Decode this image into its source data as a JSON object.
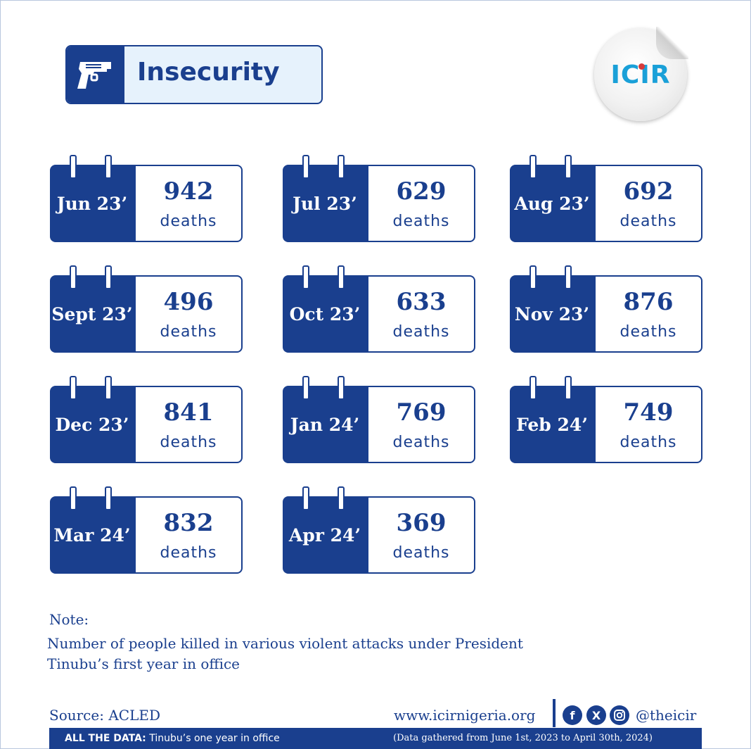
{
  "header": {
    "title": "Insecurity",
    "icon": "gun-icon"
  },
  "logo": {
    "text": "ICIR"
  },
  "cards": [
    {
      "month": "Jun 23’",
      "value": "942",
      "unit": "deaths"
    },
    {
      "month": "Jul 23’",
      "value": "629",
      "unit": "deaths"
    },
    {
      "month": "Aug 23’",
      "value": "692",
      "unit": "deaths"
    },
    {
      "month": "Sept 23’",
      "value": "496",
      "unit": "deaths"
    },
    {
      "month": "Oct 23’",
      "value": "633",
      "unit": "deaths"
    },
    {
      "month": "Nov 23’",
      "value": "876",
      "unit": "deaths"
    },
    {
      "month": "Dec 23’",
      "value": "841",
      "unit": "deaths"
    },
    {
      "month": "Jan 24’",
      "value": "769",
      "unit": "deaths"
    },
    {
      "month": "Feb 24’",
      "value": "749",
      "unit": "deaths"
    },
    {
      "month": "Mar 24’",
      "value": "832",
      "unit": "deaths"
    },
    {
      "month": "Apr 24’",
      "value": "369",
      "unit": "deaths"
    }
  ],
  "note": {
    "heading": "Note:",
    "line1": "Number of people killed in various violent attacks under President",
    "line2": "Tinubu’s first year in office"
  },
  "footer": {
    "source": "Source: ACLED",
    "website": "www.icirnigeria.org",
    "social_icons": [
      "facebook-icon",
      "x-icon",
      "instagram-icon"
    ],
    "handle": "@theicir",
    "all_data_label": "ALL THE DATA:",
    "all_data_text": "Tinubu’s one year in office",
    "gathered": "(Data gathered from June 1st, 2023 to April 30th, 2024)"
  },
  "colors": {
    "primary": "#1a3f8e",
    "badge_bg": "#e6f2fc",
    "logo_accent": "#1aa0d8"
  }
}
